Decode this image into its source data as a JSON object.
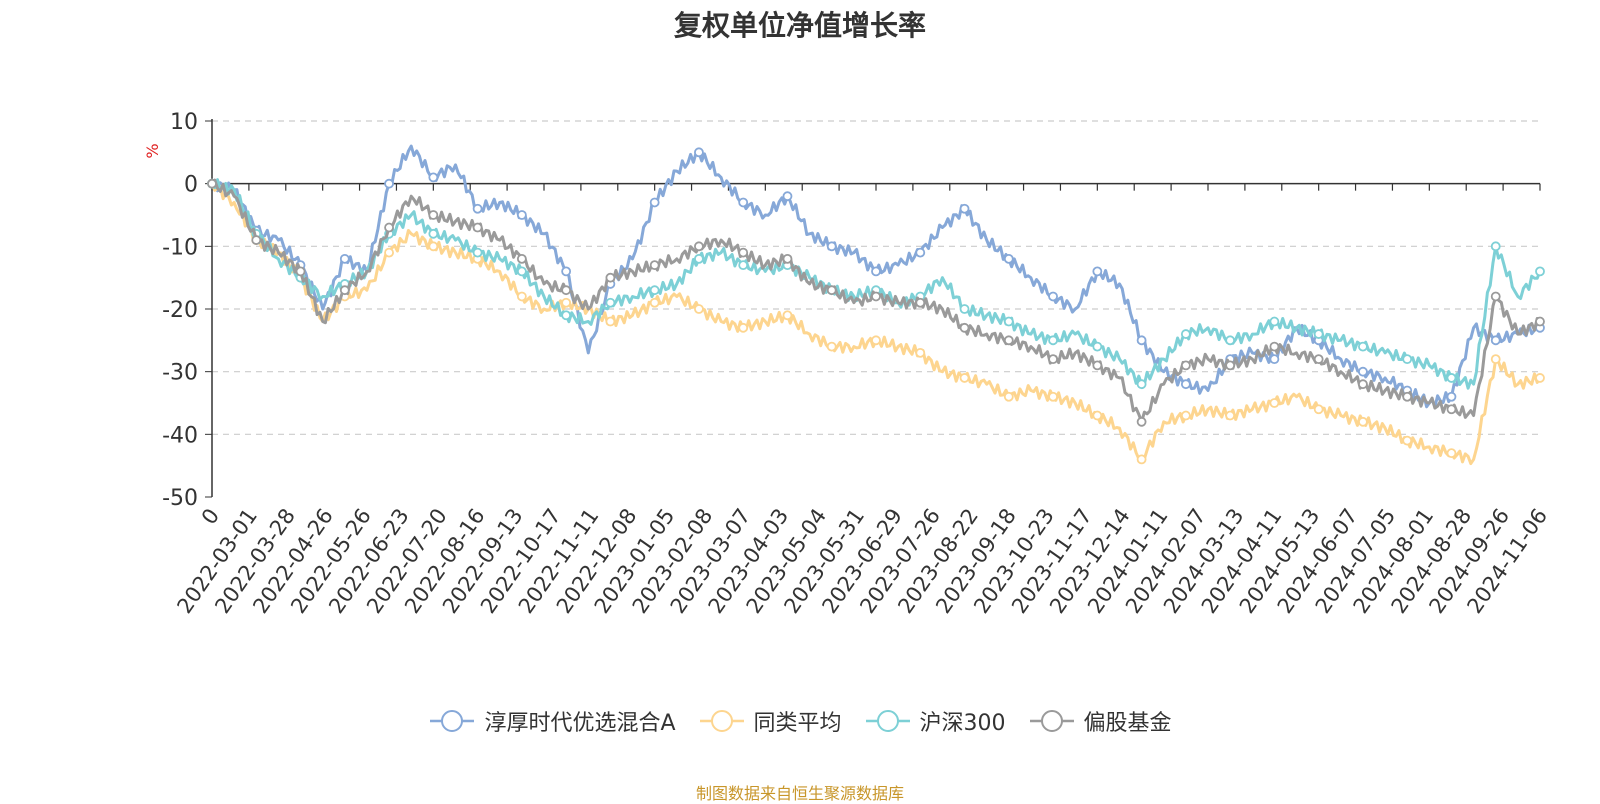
{
  "chart_data": {
    "type": "line",
    "title": "复权单位净值增长率",
    "ylabel": "%",
    "xlabel": "",
    "ylim": [
      -50,
      10
    ],
    "yticks": [
      10,
      0,
      -10,
      -20,
      -30,
      -40,
      -50
    ],
    "x_tick_labels": [
      "0",
      "2022-03-01",
      "2022-03-28",
      "2022-04-26",
      "2022-05-26",
      "2022-06-23",
      "2022-07-20",
      "2022-08-16",
      "2022-09-13",
      "2022-10-17",
      "2022-11-11",
      "2022-12-08",
      "2023-01-05",
      "2023-02-08",
      "2023-03-07",
      "2023-04-03",
      "2023-05-04",
      "2023-05-31",
      "2023-06-29",
      "2023-07-26",
      "2023-08-22",
      "2023-09-18",
      "2023-10-23",
      "2023-11-17",
      "2023-12-14",
      "2024-01-11",
      "2024-02-07",
      "2024-03-13",
      "2024-04-11",
      "2024-05-13",
      "2024-06-07",
      "2024-07-05",
      "2024-08-01",
      "2024-08-28",
      "2024-09-26",
      "2024-11-06"
    ],
    "grid": true,
    "legend_position": "bottom",
    "series": [
      {
        "name": "淳厚时代优选混合A",
        "color": "#86a8d8",
        "values": [
          0,
          -1,
          -7.5,
          -9,
          -13,
          -20,
          -12,
          -14,
          0,
          6,
          1,
          3,
          -4,
          -3,
          -5,
          -8,
          -14,
          -27,
          -16,
          -12,
          -3,
          2,
          5,
          1,
          -3,
          -5,
          -2,
          -8,
          -10,
          -11,
          -14,
          -13,
          -11,
          -7,
          -4,
          -9,
          -12,
          -15,
          -18,
          -20,
          -14,
          -16,
          -25,
          -30,
          -32,
          -33,
          -28,
          -27,
          -28,
          -23,
          -25,
          -28,
          -30,
          -31,
          -33,
          -35,
          -34,
          -23,
          -25,
          -24,
          -23
        ]
      },
      {
        "name": "同类平均",
        "color": "#fdd58f",
        "values": [
          0,
          -3,
          -9,
          -11,
          -15,
          -22,
          -18,
          -17,
          -11,
          -8,
          -10,
          -11,
          -12,
          -14,
          -18,
          -20,
          -19,
          -20,
          -22,
          -21,
          -19,
          -18,
          -20,
          -22,
          -23,
          -22,
          -21,
          -24,
          -26,
          -26,
          -25,
          -26,
          -27,
          -30,
          -31,
          -32,
          -34,
          -33,
          -34,
          -35,
          -37,
          -39,
          -44,
          -38,
          -37,
          -36,
          -37,
          -36,
          -35,
          -34,
          -36,
          -37,
          -38,
          -39,
          -41,
          -42,
          -43,
          -44,
          -28,
          -32,
          -31
        ]
      },
      {
        "name": "沪深300",
        "color": "#7dd0d6",
        "values": [
          0,
          -1,
          -8,
          -12,
          -15,
          -18,
          -16,
          -14,
          -8,
          -5,
          -8,
          -9,
          -11,
          -12,
          -14,
          -18,
          -21,
          -22,
          -19,
          -18,
          -17,
          -16,
          -12,
          -11,
          -13,
          -14,
          -13,
          -15,
          -17,
          -18,
          -17,
          -19,
          -18,
          -15,
          -20,
          -21,
          -22,
          -24,
          -25,
          -24,
          -26,
          -28,
          -32,
          -28,
          -24,
          -23,
          -25,
          -24,
          -22,
          -23,
          -24,
          -25,
          -26,
          -27,
          -28,
          -29,
          -31,
          -32,
          -10,
          -18,
          -14
        ]
      },
      {
        "name": "偏股基金",
        "color": "#9a9a9a",
        "values": [
          0,
          -2,
          -9,
          -11,
          -14,
          -22,
          -17,
          -14,
          -7,
          -2,
          -5,
          -6,
          -7,
          -9,
          -12,
          -16,
          -17,
          -20,
          -15,
          -14,
          -13,
          -12,
          -10,
          -9,
          -11,
          -13,
          -12,
          -16,
          -17,
          -19,
          -18,
          -19,
          -19,
          -20,
          -23,
          -24,
          -25,
          -26,
          -28,
          -27,
          -29,
          -31,
          -38,
          -32,
          -29,
          -28,
          -29,
          -28,
          -26,
          -27,
          -28,
          -30,
          -32,
          -33,
          -34,
          -35,
          -36,
          -37,
          -18,
          -24,
          -22
        ]
      }
    ]
  },
  "source_text": "制图数据来自恒生聚源数据库"
}
